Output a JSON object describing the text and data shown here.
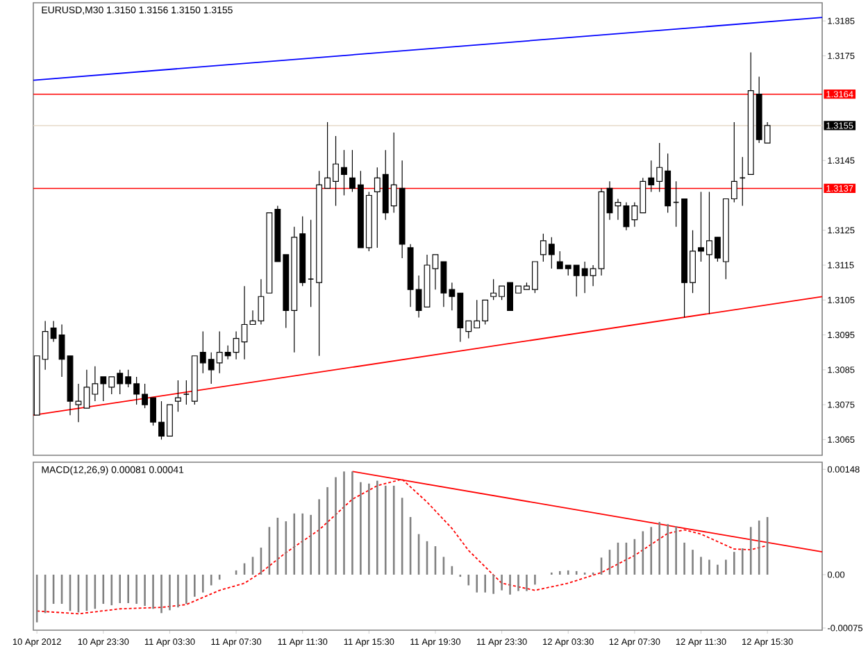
{
  "chart_data": [
    {
      "type": "candlestick",
      "title": "EURUSD,M30  1.3150 1.3156 1.3150 1.3155",
      "x": [
        "2012-04-10T19:30",
        "2012-04-10T20:00",
        "2012-04-10T20:30",
        "2012-04-10T21:00",
        "2012-04-10T21:30",
        "2012-04-10T22:00",
        "2012-04-10T22:30",
        "2012-04-10T23:00",
        "2012-04-10T23:30",
        "2012-04-11T00:00",
        "2012-04-11T00:30",
        "2012-04-11T01:00",
        "2012-04-11T01:30",
        "2012-04-11T02:00",
        "2012-04-11T02:30",
        "2012-04-11T03:00",
        "2012-04-11T03:30",
        "2012-04-11T04:00",
        "2012-04-11T04:30",
        "2012-04-11T05:00",
        "2012-04-11T05:30",
        "2012-04-11T06:00",
        "2012-04-11T06:30",
        "2012-04-11T07:00",
        "2012-04-11T07:30",
        "2012-04-11T08:00",
        "2012-04-11T08:30",
        "2012-04-11T09:00",
        "2012-04-11T09:30",
        "2012-04-11T10:00",
        "2012-04-11T10:30",
        "2012-04-11T11:00",
        "2012-04-11T11:30",
        "2012-04-11T12:00",
        "2012-04-11T12:30",
        "2012-04-11T13:00",
        "2012-04-11T13:30",
        "2012-04-11T14:00",
        "2012-04-11T14:30",
        "2012-04-11T15:00",
        "2012-04-11T15:30",
        "2012-04-11T16:00",
        "2012-04-11T16:30",
        "2012-04-11T17:00",
        "2012-04-11T17:30",
        "2012-04-11T18:00",
        "2012-04-11T18:30",
        "2012-04-11T19:00",
        "2012-04-11T19:30",
        "2012-04-11T20:00",
        "2012-04-11T20:30",
        "2012-04-11T21:00",
        "2012-04-11T21:30",
        "2012-04-11T22:00",
        "2012-04-11T22:30",
        "2012-04-11T23:00",
        "2012-04-11T23:30",
        "2012-04-12T00:00",
        "2012-04-12T00:30",
        "2012-04-12T01:00",
        "2012-04-12T01:30",
        "2012-04-12T02:00",
        "2012-04-12T02:30",
        "2012-04-12T03:00",
        "2012-04-12T03:30",
        "2012-04-12T04:00",
        "2012-04-12T04:30",
        "2012-04-12T05:00",
        "2012-04-12T05:30",
        "2012-04-12T06:00",
        "2012-04-12T06:30",
        "2012-04-12T07:00",
        "2012-04-12T07:30",
        "2012-04-12T08:00",
        "2012-04-12T08:30",
        "2012-04-12T09:00",
        "2012-04-12T09:30",
        "2012-04-12T10:00",
        "2012-04-12T10:30",
        "2012-04-12T11:00",
        "2012-04-12T11:30",
        "2012-04-12T12:00",
        "2012-04-12T12:30",
        "2012-04-12T13:00",
        "2012-04-12T13:30",
        "2012-04-12T14:00",
        "2012-04-12T14:30",
        "2012-04-12T15:00",
        "2012-04-12T15:30"
      ],
      "ohlc": [
        [
          1.3072,
          1.3089,
          1.3072,
          1.3089
        ],
        [
          1.3088,
          1.3099,
          1.3085,
          1.3096
        ],
        [
          1.3097,
          1.3099,
          1.3093,
          1.3094
        ],
        [
          1.3095,
          1.3098,
          1.3083,
          1.3088
        ],
        [
          1.3089,
          1.3089,
          1.3072,
          1.3076
        ],
        [
          1.3075,
          1.3081,
          1.307,
          1.3076
        ],
        [
          1.3074,
          1.3085,
          1.3074,
          1.308
        ],
        [
          1.3078,
          1.3086,
          1.3076,
          1.3081
        ],
        [
          1.3083,
          1.3083,
          1.3076,
          1.3081
        ],
        [
          1.308,
          1.3083,
          1.3078,
          1.3083
        ],
        [
          1.3084,
          1.3085,
          1.3078,
          1.3081
        ],
        [
          1.3083,
          1.3085,
          1.308,
          1.3081
        ],
        [
          1.3081,
          1.3083,
          1.3075,
          1.3078
        ],
        [
          1.3078,
          1.3081,
          1.3074,
          1.3075
        ],
        [
          1.3077,
          1.3077,
          1.3069,
          1.307
        ],
        [
          1.307,
          1.3076,
          1.3065,
          1.3066
        ],
        [
          1.3066,
          1.3075,
          1.3066,
          1.3075
        ],
        [
          1.3076,
          1.3082,
          1.3073,
          1.3077
        ],
        [
          1.3078,
          1.3082,
          1.3075,
          1.3078
        ],
        [
          1.3076,
          1.3089,
          1.3075,
          1.3089
        ],
        [
          1.309,
          1.3096,
          1.3084,
          1.3087
        ],
        [
          1.3088,
          1.309,
          1.3081,
          1.3085
        ],
        [
          1.3087,
          1.3096,
          1.3084,
          1.309
        ],
        [
          1.309,
          1.3092,
          1.3088,
          1.3089
        ],
        [
          1.309,
          1.3096,
          1.3088,
          1.3094
        ],
        [
          1.3093,
          1.3109,
          1.3088,
          1.3098
        ],
        [
          1.3098,
          1.3102,
          1.3098,
          1.3099
        ],
        [
          1.3099,
          1.3111,
          1.3098,
          1.3106
        ],
        [
          1.3107,
          1.313,
          1.3107,
          1.313
        ],
        [
          1.3131,
          1.3132,
          1.3116,
          1.3116
        ],
        [
          1.3118,
          1.3118,
          1.3097,
          1.3102
        ],
        [
          1.3102,
          1.3126,
          1.309,
          1.3123
        ],
        [
          1.3124,
          1.3129,
          1.3109,
          1.311
        ],
        [
          1.3111,
          1.3128,
          1.3103,
          1.3111
        ],
        [
          1.311,
          1.3142,
          1.3089,
          1.3138
        ],
        [
          1.3137,
          1.3156,
          1.3137,
          1.314
        ],
        [
          1.3139,
          1.3152,
          1.3132,
          1.3144
        ],
        [
          1.3143,
          1.3148,
          1.3135,
          1.3141
        ],
        [
          1.314,
          1.3148,
          1.3136,
          1.3137
        ],
        [
          1.3138,
          1.3142,
          1.312,
          1.312
        ],
        [
          1.312,
          1.3136,
          1.3119,
          1.3135
        ],
        [
          1.3136,
          1.3143,
          1.312,
          1.314
        ],
        [
          1.3141,
          1.3148,
          1.3128,
          1.313
        ],
        [
          1.3132,
          1.3153,
          1.313,
          1.3138
        ],
        [
          1.3137,
          1.3145,
          1.3117,
          1.3121
        ],
        [
          1.312,
          1.3121,
          1.3103,
          1.3108
        ],
        [
          1.3108,
          1.3112,
          1.31,
          1.3102
        ],
        [
          1.3103,
          1.3118,
          1.3103,
          1.3115
        ],
        [
          1.3114,
          1.3118,
          1.3108,
          1.3118
        ],
        [
          1.3116,
          1.3116,
          1.3103,
          1.3107
        ],
        [
          1.3108,
          1.311,
          1.3102,
          1.3106
        ],
        [
          1.3107,
          1.3107,
          1.3093,
          1.3097
        ],
        [
          1.3096,
          1.3099,
          1.3094,
          1.3099
        ],
        [
          1.3097,
          1.3105,
          1.3097,
          1.3099
        ],
        [
          1.3099,
          1.3105,
          1.3098,
          1.3105
        ],
        [
          1.3106,
          1.3111,
          1.3105,
          1.3107
        ],
        [
          1.3106,
          1.3109,
          1.3105,
          1.3109
        ],
        [
          1.311,
          1.311,
          1.3102,
          1.3102
        ],
        [
          1.3107,
          1.3109,
          1.3107,
          1.3109
        ],
        [
          1.3108,
          1.311,
          1.3108,
          1.3109
        ],
        [
          1.3108,
          1.3116,
          1.3107,
          1.3116
        ],
        [
          1.3118,
          1.3124,
          1.3116,
          1.3122
        ],
        [
          1.3121,
          1.3123,
          1.3114,
          1.3118
        ],
        [
          1.3116,
          1.3119,
          1.3114,
          1.3114
        ],
        [
          1.3115,
          1.3115,
          1.3112,
          1.3114
        ],
        [
          1.3115,
          1.3115,
          1.3106,
          1.3112
        ],
        [
          1.3114,
          1.3116,
          1.3107,
          1.3112
        ],
        [
          1.3112,
          1.3115,
          1.3109,
          1.3114
        ],
        [
          1.3114,
          1.3137,
          1.3112,
          1.3136
        ],
        [
          1.3137,
          1.3139,
          1.3128,
          1.313
        ],
        [
          1.3132,
          1.3134,
          1.3128,
          1.3133
        ],
        [
          1.3132,
          1.3133,
          1.3125,
          1.3126
        ],
        [
          1.3128,
          1.3133,
          1.3126,
          1.3132
        ],
        [
          1.313,
          1.314,
          1.313,
          1.3139
        ],
        [
          1.314,
          1.3145,
          1.3136,
          1.3138
        ],
        [
          1.3139,
          1.315,
          1.3136,
          1.3143
        ],
        [
          1.3142,
          1.3147,
          1.313,
          1.3132
        ],
        [
          1.3133,
          1.3139,
          1.3126,
          1.3133
        ],
        [
          1.3134,
          1.3134,
          1.31,
          1.311
        ],
        [
          1.311,
          1.3125,
          1.3107,
          1.3119
        ],
        [
          1.312,
          1.3136,
          1.3116,
          1.3119
        ],
        [
          1.3118,
          1.3136,
          1.3101,
          1.3122
        ],
        [
          1.3123,
          1.3123,
          1.3116,
          1.3117
        ],
        [
          1.3116,
          1.3134,
          1.3111,
          1.3134
        ],
        [
          1.3134,
          1.3156,
          1.3133,
          1.3139
        ],
        [
          1.314,
          1.3146,
          1.3132,
          1.314
        ],
        [
          1.3141,
          1.3176,
          1.3141,
          1.3165
        ],
        [
          1.3164,
          1.3169,
          1.315,
          1.3151
        ],
        [
          1.315,
          1.3156,
          1.315,
          1.3155
        ]
      ],
      "series": [
        {
          "type": "line",
          "color": "#0000ff",
          "x": [
            "2012-04-10T19:17",
            "2012-04-12T18:48"
          ],
          "values": [
            1.3168,
            1.3186
          ]
        },
        {
          "type": "line",
          "color": "#ff0000",
          "x": [
            "2012-04-10T19:17",
            "2012-04-12T18:48"
          ],
          "values": [
            1.3072,
            1.3106
          ]
        }
      ],
      "ref_lines": [
        {
          "axis": "y",
          "value": 1.3164,
          "label": "1.3164",
          "color": "#ff0000"
        },
        {
          "axis": "y",
          "value": 1.3155,
          "label": "1.3155",
          "color": "#e6d8c8"
        },
        {
          "axis": "y",
          "value": 1.3137,
          "label": "1.3137",
          "color": "#ff0000"
        }
      ],
      "xlim": [
        "2012-04-10T19:17",
        "2012-04-12T18:48"
      ],
      "ylim": [
        1.30605,
        1.31902
      ],
      "yticks": [
        1.3065,
        1.3075,
        1.3085,
        1.3095,
        1.3105,
        1.3115,
        1.3125,
        1.3145,
        1.3175,
        1.3185
      ],
      "tick_labels": "y"
    },
    {
      "type": "bar",
      "title": "MACD(12,26,9) 0.00081 0.00041",
      "x": [
        "2012-04-10T19:30",
        "2012-04-10T20:00",
        "2012-04-10T20:30",
        "2012-04-10T21:00",
        "2012-04-10T21:30",
        "2012-04-10T22:00",
        "2012-04-10T22:30",
        "2012-04-10T23:00",
        "2012-04-10T23:30",
        "2012-04-11T00:00",
        "2012-04-11T00:30",
        "2012-04-11T01:00",
        "2012-04-11T01:30",
        "2012-04-11T02:00",
        "2012-04-11T02:30",
        "2012-04-11T03:00",
        "2012-04-11T03:30",
        "2012-04-11T04:00",
        "2012-04-11T04:30",
        "2012-04-11T05:00",
        "2012-04-11T05:30",
        "2012-04-11T06:00",
        "2012-04-11T06:30",
        "2012-04-11T07:00",
        "2012-04-11T07:30",
        "2012-04-11T08:00",
        "2012-04-11T08:30",
        "2012-04-11T09:00",
        "2012-04-11T09:30",
        "2012-04-11T10:00",
        "2012-04-11T10:30",
        "2012-04-11T11:00",
        "2012-04-11T11:30",
        "2012-04-11T12:00",
        "2012-04-11T12:30",
        "2012-04-11T13:00",
        "2012-04-11T13:30",
        "2012-04-11T14:00",
        "2012-04-11T14:30",
        "2012-04-11T15:00",
        "2012-04-11T15:30",
        "2012-04-11T16:00",
        "2012-04-11T16:30",
        "2012-04-11T17:00",
        "2012-04-11T17:30",
        "2012-04-11T18:00",
        "2012-04-11T18:30",
        "2012-04-11T19:00",
        "2012-04-11T19:30",
        "2012-04-11T20:00",
        "2012-04-11T20:30",
        "2012-04-11T21:00",
        "2012-04-11T21:30",
        "2012-04-11T22:00",
        "2012-04-11T22:30",
        "2012-04-11T23:00",
        "2012-04-11T23:30",
        "2012-04-12T00:00",
        "2012-04-12T00:30",
        "2012-04-12T01:00",
        "2012-04-12T01:30",
        "2012-04-12T02:00",
        "2012-04-12T02:30",
        "2012-04-12T03:00",
        "2012-04-12T03:30",
        "2012-04-12T04:00",
        "2012-04-12T04:30",
        "2012-04-12T05:00",
        "2012-04-12T05:30",
        "2012-04-12T06:00",
        "2012-04-12T06:30",
        "2012-04-12T07:00",
        "2012-04-12T07:30",
        "2012-04-12T08:00",
        "2012-04-12T08:30",
        "2012-04-12T09:00",
        "2012-04-12T09:30",
        "2012-04-12T10:00",
        "2012-04-12T10:30",
        "2012-04-12T11:00",
        "2012-04-12T11:30",
        "2012-04-12T12:00",
        "2012-04-12T12:30",
        "2012-04-12T13:00",
        "2012-04-12T13:30",
        "2012-04-12T14:00",
        "2012-04-12T14:30",
        "2012-04-12T15:00",
        "2012-04-12T15:30"
      ],
      "series": [
        {
          "color": "#808080",
          "values": [
            -0.00067,
            -0.00054,
            -0.00041,
            -0.00041,
            -0.00051,
            -0.00053,
            -0.00051,
            -0.00048,
            -0.00041,
            -0.00043,
            -0.0004,
            -0.0004,
            -0.00041,
            -0.00044,
            -0.00048,
            -0.00054,
            -0.0005,
            -0.00046,
            -0.00041,
            -0.00031,
            -0.00025,
            -0.00015,
            -7e-05,
            0,
            6e-05,
            0.00016,
            0.00025,
            0.00038,
            0.00067,
            0.0008,
            0.00075,
            0.00086,
            0.00086,
            0.00084,
            0.00106,
            0.00123,
            0.00137,
            0.00145,
            0.00145,
            0.0013,
            0.00128,
            0.00132,
            0.00125,
            0.00125,
            0.00108,
            0.00081,
            0.00057,
            0.00047,
            0.0004,
            0.00025,
            0.00012,
            -3e-05,
            -0.00015,
            -0.00025,
            -0.00025,
            -0.00027,
            -0.00022,
            -0.00028,
            -0.00023,
            -0.00023,
            -0.00014,
            0,
            3e-05,
            5e-05,
            6e-05,
            5e-05,
            3e-05,
            3e-05,
            0.00024,
            0.00035,
            0.00045,
            0.00045,
            0.0005,
            0.00061,
            0.00067,
            0.00074,
            0.00071,
            0.00068,
            0.00045,
            0.00035,
            0.00025,
            0.00021,
            0.00014,
            0.00021,
            0.00032,
            0.00037,
            0.00067,
            0.00076,
            0.00081
          ]
        },
        {
          "type": "line",
          "color": "#ff0000",
          "line_style": "dashed",
          "x": [
            "2012-04-10T19:30",
            "2012-04-10T22:00",
            "2012-04-11T00:30",
            "2012-04-11T03:00",
            "2012-04-11T04:30",
            "2012-04-11T06:30",
            "2012-04-11T08:00",
            "2012-04-11T09:00",
            "2012-04-11T10:30",
            "2012-04-11T12:30",
            "2012-04-11T14:30",
            "2012-04-11T16:00",
            "2012-04-11T17:30",
            "2012-04-11T19:00",
            "2012-04-11T20:30",
            "2012-04-11T21:30",
            "2012-04-11T23:30",
            "2012-04-12T01:30",
            "2012-04-12T03:30",
            "2012-04-12T05:30",
            "2012-04-12T07:30",
            "2012-04-12T09:30",
            "2012-04-12T10:30",
            "2012-04-12T11:30",
            "2012-04-12T13:30",
            "2012-04-12T14:30",
            "2012-04-12T15:30"
          ],
          "values": [
            -0.00051,
            -0.00055,
            -0.00048,
            -0.00046,
            -0.00042,
            -0.00022,
            -0.00012,
            3e-05,
            0.00031,
            0.00063,
            0.00106,
            0.00125,
            0.00134,
            0.00102,
            0.00065,
            0.00034,
            -0.00012,
            -0.00022,
            -0.00012,
            3e-05,
            0.00027,
            0.00058,
            0.00063,
            0.00057,
            0.00036,
            0.00035,
            0.00041
          ]
        },
        {
          "type": "line",
          "color": "#ff0000",
          "x": [
            "2012-04-11T14:30",
            "2012-04-12T18:48"
          ],
          "values": [
            0.00145,
            0.00032
          ]
        }
      ],
      "xlim": [
        "2012-04-10T19:17",
        "2012-04-12T18:48"
      ],
      "xticks": [
        {
          "value": "2012-04-10T19:30",
          "label": "10 Apr 2012"
        },
        {
          "value": "2012-04-10T23:30",
          "label": "10 Apr 23:30"
        },
        {
          "value": "2012-04-11T03:30",
          "label": "11 Apr 03:30"
        },
        {
          "value": "2012-04-11T07:30",
          "label": "11 Apr 07:30"
        },
        {
          "value": "2012-04-11T11:30",
          "label": "11 Apr 11:30"
        },
        {
          "value": "2012-04-11T15:30",
          "label": "11 Apr 15:30"
        },
        {
          "value": "2012-04-11T19:30",
          "label": "11 Apr 19:30"
        },
        {
          "value": "2012-04-11T23:30",
          "label": "11 Apr 23:30"
        },
        {
          "value": "2012-04-12T03:30",
          "label": "12 Apr 03:30"
        },
        {
          "value": "2012-04-12T07:30",
          "label": "12 Apr 07:30"
        },
        {
          "value": "2012-04-12T11:30",
          "label": "12 Apr 11:30"
        },
        {
          "value": "2012-04-12T15:30",
          "label": "12 Apr 15:30"
        }
      ],
      "ylim": [
        -0.00078,
        0.00158
      ],
      "yticks": [
        0.00148,
        {
          "value": 0,
          "label": "0.00"
        },
        -0.00075
      ]
    }
  ]
}
